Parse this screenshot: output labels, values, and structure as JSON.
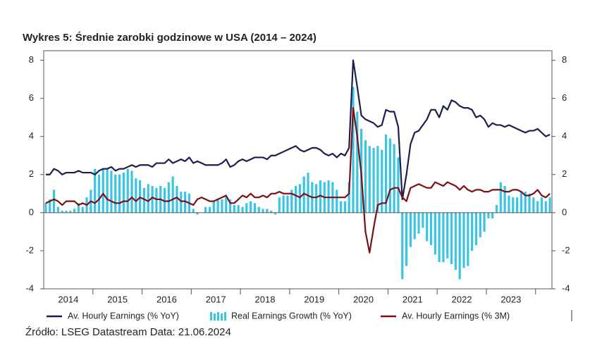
{
  "chart_data": {
    "type": "combo",
    "title": "Wykres 5: Średnie zarobki godzinowe w USA (2014 – 2024)",
    "source": "Źródło: LSEG Datastream Data: 21.06.2024",
    "categories": [
      null,
      null,
      null,
      null,
      null,
      null,
      "2014",
      null,
      null,
      null,
      null,
      null,
      null,
      null,
      null,
      null,
      null,
      null,
      "2015",
      null,
      null,
      null,
      null,
      null,
      null,
      null,
      null,
      null,
      null,
      null,
      "2016",
      null,
      null,
      null,
      null,
      null,
      null,
      null,
      null,
      null,
      null,
      null,
      "2017",
      null,
      null,
      null,
      null,
      null,
      null,
      null,
      null,
      null,
      null,
      null,
      "2018",
      null,
      null,
      null,
      null,
      null,
      null,
      null,
      null,
      null,
      null,
      null,
      "2019",
      null,
      null,
      null,
      null,
      null,
      null,
      null,
      null,
      null,
      null,
      null,
      "2020",
      null,
      null,
      null,
      null,
      null,
      null,
      null,
      null,
      null,
      null,
      null,
      "2021",
      null,
      null,
      null,
      null,
      null,
      null,
      null,
      null,
      null,
      null,
      null,
      "2022",
      null,
      null,
      null,
      null,
      null,
      null,
      null,
      null,
      null,
      null,
      null,
      "2023",
      null,
      null,
      null,
      null,
      null,
      null,
      null,
      null,
      null
    ],
    "series": [
      {
        "name": "Av. Hourly Earnings (% YoY)",
        "type": "line",
        "color": "#1b1f4f",
        "values": [
          2.0,
          2.0,
          2.3,
          2.2,
          2.0,
          2.1,
          2.1,
          2.1,
          2.2,
          2.1,
          2.1,
          2.1,
          2.0,
          2.2,
          2.3,
          2.3,
          2.4,
          2.2,
          2.3,
          2.3,
          2.4,
          2.5,
          2.4,
          2.5,
          2.5,
          2.5,
          2.4,
          2.6,
          2.6,
          2.6,
          2.8,
          2.6,
          2.7,
          2.8,
          2.7,
          2.9,
          2.6,
          2.7,
          2.6,
          2.5,
          2.5,
          2.5,
          2.5,
          2.6,
          2.8,
          2.4,
          2.5,
          2.7,
          2.8,
          2.7,
          2.8,
          2.9,
          2.9,
          2.9,
          2.8,
          3.0,
          3.0,
          3.1,
          3.2,
          3.3,
          3.4,
          3.5,
          3.3,
          3.2,
          3.3,
          3.4,
          3.4,
          3.3,
          3.1,
          3.0,
          3.1,
          2.9,
          3.1,
          3.0,
          3.4,
          8.0,
          6.6,
          5.1,
          4.9,
          4.8,
          4.7,
          4.5,
          4.6,
          5.4,
          5.3,
          5.3,
          4.5,
          0.7,
          2.0,
          3.6,
          4.2,
          4.3,
          4.6,
          4.9,
          5.4,
          5.4,
          5.0,
          5.6,
          5.4,
          5.9,
          5.8,
          5.6,
          5.5,
          5.5,
          5.4,
          5.0,
          5.1,
          4.9,
          4.5,
          4.7,
          4.6,
          4.6,
          4.5,
          4.6,
          4.5,
          4.4,
          4.3,
          4.2,
          4.3,
          4.3,
          4.4,
          4.2,
          4.0,
          4.1
        ]
      },
      {
        "name": "Real Earnings Growth (% YoY)",
        "type": "bar",
        "color": "#3ac6e0",
        "values": [
          0.5,
          0.7,
          1.2,
          0.3,
          0.1,
          0.1,
          0.1,
          0.2,
          0.5,
          0.3,
          0.8,
          1.2,
          2.3,
          2.0,
          2.3,
          2.3,
          2.2,
          2.0,
          2.0,
          2.1,
          2.3,
          2.2,
          1.8,
          1.7,
          1.3,
          1.5,
          1.4,
          1.3,
          1.4,
          1.3,
          1.6,
          1.9,
          1.4,
          1.1,
          1.1,
          1.0,
          0.2,
          -0.1,
          0.0,
          0.3,
          0.3,
          0.6,
          0.7,
          0.7,
          0.9,
          0.7,
          0.4,
          0.4,
          0.3,
          0.5,
          0.6,
          0.5,
          0.3,
          0.2,
          0.2,
          0.1,
          -0.1,
          0.8,
          0.9,
          0.9,
          1.2,
          1.4,
          1.5,
          1.9,
          2.1,
          1.6,
          1.5,
          1.7,
          1.6,
          1.7,
          1.6,
          1.2,
          0.6,
          0.6,
          1.6,
          6.6,
          5.3,
          4.4,
          3.8,
          3.5,
          3.4,
          3.5,
          3.3,
          4.1,
          3.9,
          3.6,
          2.9,
          -3.5,
          -2.8,
          -1.8,
          -1.4,
          -1.1,
          -0.8,
          -1.5,
          -1.7,
          -2.2,
          -2.6,
          -2.6,
          -2.4,
          -2.7,
          -3.0,
          -3.5,
          -2.9,
          -2.8,
          -2.0,
          -1.7,
          -1.3,
          -1.0,
          -0.3,
          -0.3,
          0.4,
          1.6,
          1.4,
          0.9,
          0.8,
          0.8,
          1.1,
          1.1,
          1.0,
          0.8,
          0.6,
          0.8,
          0.6,
          0.8
        ]
      },
      {
        "name": "Av. Hourly Earnings (% 3M)",
        "type": "line",
        "color": "#7c0f16",
        "values": [
          0.5,
          0.6,
          0.7,
          0.6,
          0.4,
          0.6,
          0.6,
          0.6,
          0.4,
          0.5,
          0.4,
          0.6,
          0.5,
          0.7,
          1.0,
          0.7,
          0.6,
          0.5,
          0.5,
          0.6,
          0.6,
          0.8,
          0.6,
          0.8,
          0.7,
          0.6,
          0.8,
          0.7,
          0.7,
          0.6,
          0.6,
          0.7,
          0.8,
          0.6,
          0.6,
          0.5,
          0.4,
          0.7,
          0.8,
          0.7,
          0.6,
          0.6,
          0.7,
          0.8,
          0.9,
          0.5,
          0.5,
          0.7,
          0.9,
          0.8,
          1.0,
          0.8,
          0.8,
          0.9,
          0.8,
          1.0,
          1.0,
          1.1,
          1.0,
          1.0,
          1.0,
          0.9,
          0.8,
          1.0,
          0.9,
          0.8,
          0.8,
          0.9,
          0.8,
          0.8,
          0.8,
          0.8,
          0.8,
          0.8,
          1.0,
          5.5,
          4.0,
          2.0,
          -1.0,
          -2.1,
          -0.8,
          0.4,
          0.5,
          0.5,
          1.2,
          1.3,
          1.3,
          0.8,
          0.6,
          1.3,
          1.4,
          1.5,
          1.4,
          1.3,
          1.3,
          1.6,
          1.5,
          1.4,
          1.6,
          1.5,
          1.4,
          1.2,
          1.4,
          1.2,
          1.1,
          1.2,
          1.2,
          1.1,
          1.1,
          1.2,
          1.2,
          1.2,
          1.1,
          1.1,
          1.2,
          1.2,
          1.1,
          0.9,
          0.9,
          1.0,
          1.2,
          0.9,
          0.8,
          1.0
        ]
      }
    ],
    "ylim": [
      -4,
      8.5
    ],
    "yticks": [
      -4,
      -2,
      0,
      2,
      4,
      6,
      8
    ]
  }
}
